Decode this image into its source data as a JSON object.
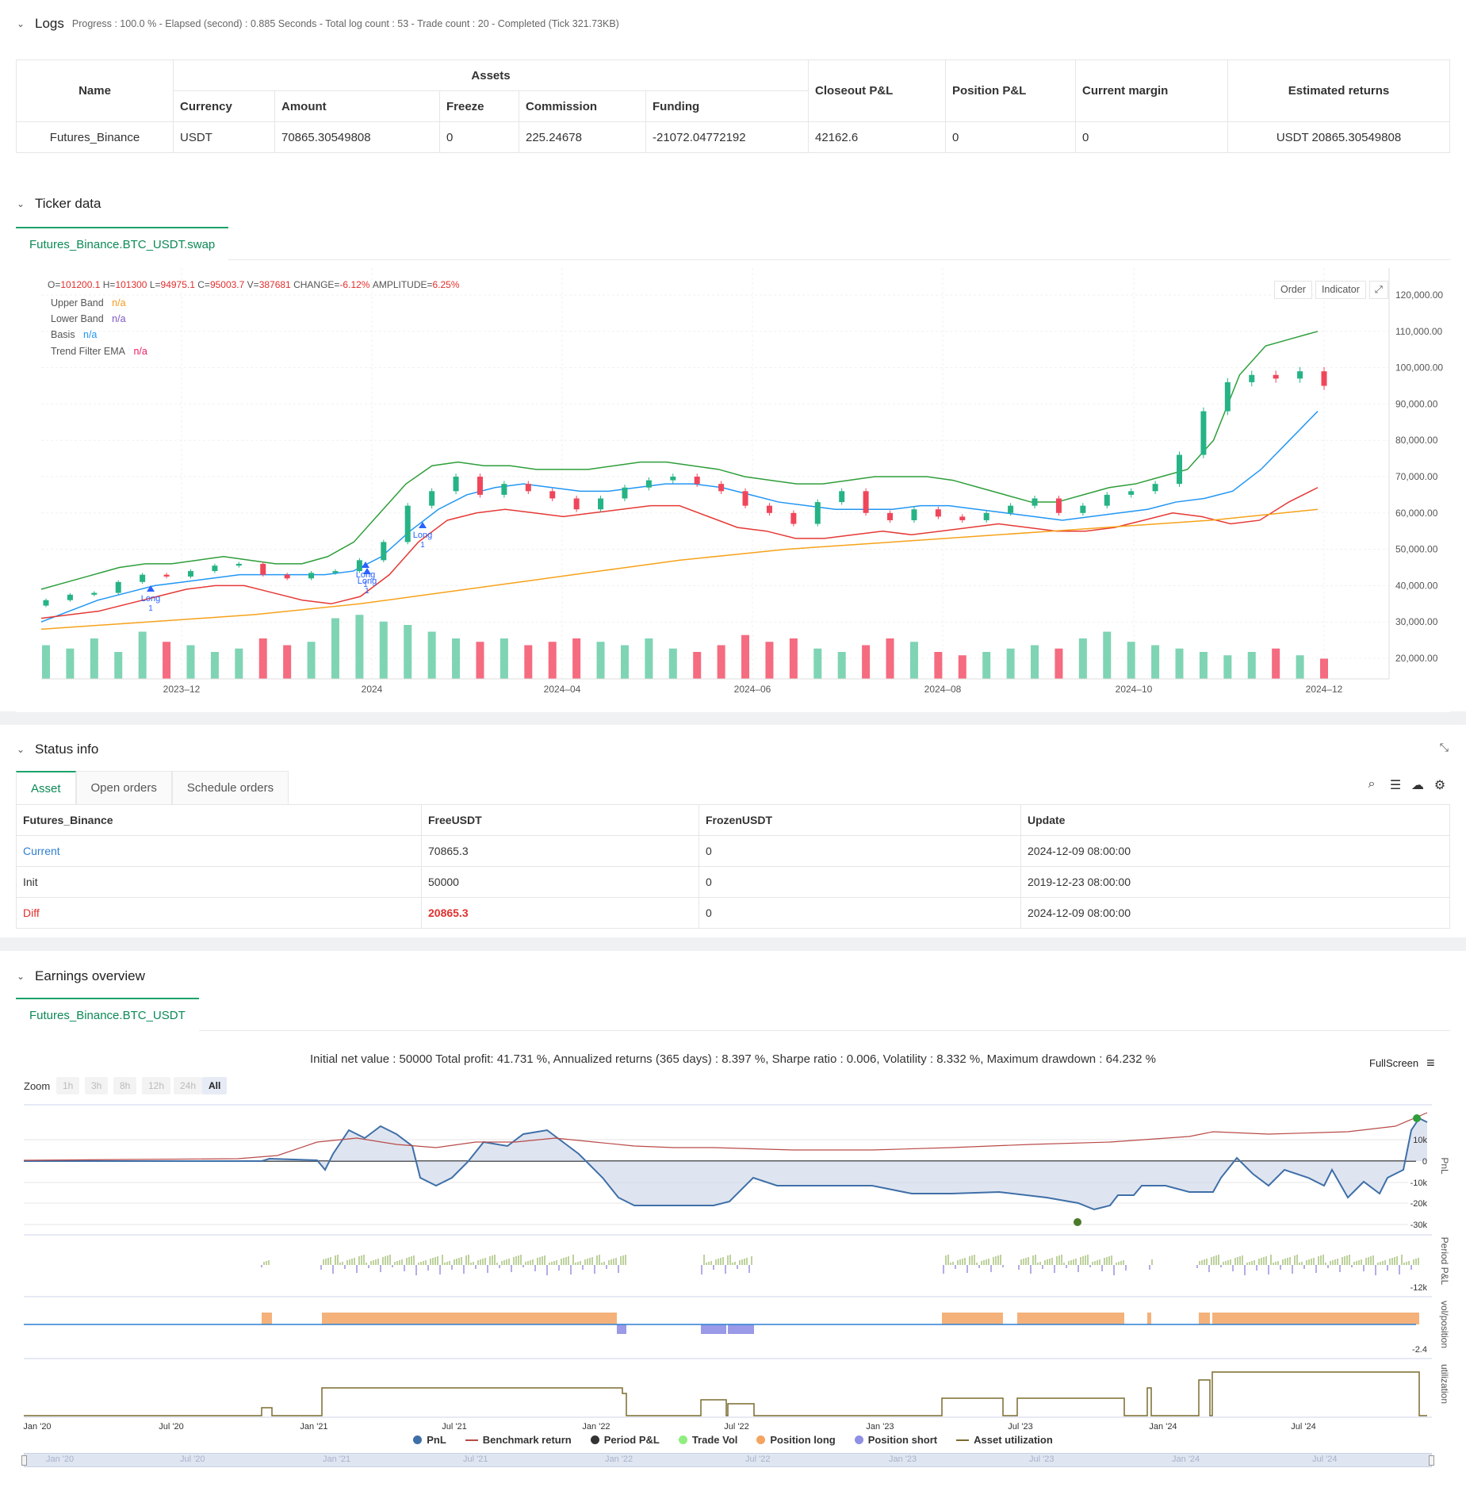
{
  "logs": {
    "title": "Logs",
    "summary": "Progress : 100.0 % - Elapsed (second) : 0.885  Seconds - Total log count : 53 - Trade count : 20 - Completed (Tick 321.73KB)",
    "headers": {
      "name": "Name",
      "assets": "Assets",
      "currency": "Currency",
      "amount": "Amount",
      "freeze": "Freeze",
      "commission": "Commission",
      "funding": "Funding",
      "closeout": "Closeout P&L",
      "position": "Position P&L",
      "margin": "Current margin",
      "returns": "Estimated returns"
    },
    "row": {
      "name": "Futures_Binance",
      "currency": "USDT",
      "amount": "70865.30549808",
      "freeze": "0",
      "commission": "225.24678",
      "funding": "-21072.04772192",
      "closeout": "42162.6",
      "position": "0",
      "margin": "0",
      "returns": "USDT 20865.30549808"
    }
  },
  "ticker": {
    "title": "Ticker data",
    "tab": "Futures_Binance.BTC_USDT.swap",
    "ohlc": {
      "o_label": "O=",
      "o": "101200.1",
      "h_label": "H=",
      "h": "101300",
      "l_label": "L=",
      "l": "94975.1",
      "c_label": "C=",
      "c": "95003.7",
      "v_label": "V=",
      "v": "387681",
      "chg_label": "CHANGE=",
      "chg": "-6.12%",
      "amp_label": "AMPLITUDE=",
      "amp": "6.25%"
    },
    "legend": [
      {
        "name": "Upper Band",
        "value": "n/a",
        "color": "#f29b1d"
      },
      {
        "name": "Lower Band",
        "value": "n/a",
        "color": "#7e57c2"
      },
      {
        "name": "Basis",
        "value": "n/a",
        "color": "#2196f3"
      },
      {
        "name": "Trend Filter EMA",
        "value": "n/a",
        "color": "#e91e63"
      }
    ],
    "buttons": {
      "order": "Order",
      "indicator": "Indicator"
    },
    "y_ticks": [
      "120,000.00",
      "110,000.00",
      "100,000.00",
      "90,000.00",
      "80,000.00",
      "70,000.00",
      "60,000.00",
      "50,000.00",
      "40,000.00",
      "30,000.00",
      "20,000.00"
    ],
    "x_ticks": [
      "2023–12",
      "2024",
      "2024–04",
      "2024–06",
      "2024–08",
      "2024–10",
      "2024–12"
    ],
    "signal_label": "Long",
    "signal_qty": "1"
  },
  "status": {
    "title": "Status info",
    "tabs": [
      "Asset",
      "Open orders",
      "Schedule orders"
    ],
    "headers": [
      "Futures_Binance",
      "FreeUSDT",
      "FrozenUSDT",
      "Update"
    ],
    "rows": [
      {
        "label": "Current",
        "free": "70865.3",
        "frozen": "0",
        "update": "2024-12-09 08:00:00",
        "color": "#2f7fd1"
      },
      {
        "label": "Init",
        "free": "50000",
        "frozen": "0",
        "update": "2019-12-23 08:00:00",
        "color": "#333333"
      },
      {
        "label": "Diff",
        "free": "20865.3",
        "frozen": "0",
        "update": "2024-12-09 08:00:00",
        "color": "#e0302d"
      }
    ]
  },
  "earnings": {
    "title": "Earnings overview",
    "tab": "Futures_Binance.BTC_USDT",
    "summary": "Initial net value : 50000  Total profit: 41.731 %, Annualized returns (365 days) : 8.397 %, Sharpe ratio : 0.006, Volatility : 8.332 %, Maximum drawdown : 64.232 %",
    "fullscreen": "FullScreen",
    "zoom_label": "Zoom",
    "zoom_options": [
      "1h",
      "3h",
      "8h",
      "12h",
      "24h",
      "All"
    ],
    "pnl_ticks": [
      "10k",
      "0",
      "-10k",
      "-20k",
      "-30k"
    ],
    "pnl_axis": "PnL",
    "period_axis": "Period P&L",
    "period_tick": "-12k",
    "vol_axis": "vol/position",
    "vol_tick": "-2.4",
    "util_axis": "utilization",
    "x_ticks": [
      "Jan '20",
      "Jul '20",
      "Jan '21",
      "Jul '21",
      "Jan '22",
      "Jul '22",
      "Jan '23",
      "Jul '23",
      "Jan '24",
      "Jul '24"
    ],
    "legend": [
      {
        "name": "PnL",
        "color": "#3f6fa8",
        "kind": "dot"
      },
      {
        "name": "Benchmark return",
        "color": "#b94a48",
        "kind": "line"
      },
      {
        "name": "Period P&L",
        "color": "#333333",
        "kind": "dot"
      },
      {
        "name": "Trade Vol",
        "color": "#90ee7e",
        "kind": "dot"
      },
      {
        "name": "Position long",
        "color": "#f4a460",
        "kind": "dot"
      },
      {
        "name": "Position short",
        "color": "#8f8fe6",
        "kind": "dot"
      },
      {
        "name": "Asset utilization",
        "color": "#7a6b2f",
        "kind": "line"
      }
    ]
  },
  "chart_data": {
    "type": "candlestick",
    "title": "Futures_Binance.BTC_USDT.swap",
    "ylim": [
      15000,
      125000
    ],
    "series": [
      {
        "name": "Close (approx.)",
        "values": [
          36000,
          37500,
          38000,
          41000,
          43000,
          42500,
          44000,
          45500,
          46000,
          43000,
          42000,
          43500,
          44000,
          47000,
          52000,
          62000,
          66000,
          70000,
          65000,
          68000,
          66000,
          64000,
          61000,
          64000,
          67000,
          69000,
          70000,
          68000,
          66000,
          62000,
          60000,
          57000,
          63000,
          66000,
          60000,
          58000,
          61000,
          59000,
          58000,
          60000,
          62000,
          64000,
          60000,
          62000,
          65000,
          66000,
          68000,
          76000,
          88000,
          96000,
          98000,
          97000,
          99000,
          95000
        ]
      },
      {
        "name": "Upper Band (approx.)",
        "values": [
          39000,
          41000,
          43000,
          45000,
          46000,
          46000,
          47000,
          48000,
          47000,
          46000,
          46000,
          48000,
          52000,
          60000,
          68000,
          73000,
          74000,
          73000,
          73000,
          72000,
          72000,
          72000,
          73000,
          74000,
          74000,
          73000,
          72000,
          70000,
          69000,
          68000,
          68000,
          69000,
          70000,
          70000,
          70000,
          69000,
          67000,
          65000,
          63000,
          63000,
          65000,
          67000,
          68000,
          70000,
          72000,
          80000,
          98000,
          106000,
          108000,
          110000
        ]
      },
      {
        "name": "Basis (approx.)",
        "values": [
          30000,
          33000,
          36000,
          38000,
          40000,
          41000,
          42000,
          43000,
          43000,
          43000,
          43000,
          44000,
          48000,
          55000,
          61000,
          65000,
          67000,
          68000,
          67000,
          66000,
          66000,
          67000,
          68000,
          68000,
          67000,
          65000,
          63000,
          62000,
          61000,
          61000,
          61000,
          62000,
          62000,
          61000,
          60000,
          59000,
          58000,
          59000,
          60000,
          61000,
          63000,
          64000,
          66000,
          72000,
          80000,
          88000
        ]
      },
      {
        "name": "Lower Band (approx.)",
        "values": [
          31000,
          32000,
          33000,
          35000,
          37000,
          39000,
          40000,
          40000,
          38000,
          36000,
          35000,
          37000,
          43000,
          52000,
          58000,
          60000,
          61000,
          60000,
          59000,
          60000,
          61000,
          62000,
          62000,
          59000,
          56000,
          55000,
          53000,
          53000,
          54000,
          55000,
          54000,
          55000,
          56000,
          57000,
          56000,
          55000,
          55000,
          56000,
          58000,
          60000,
          59000,
          57000,
          58000,
          63000,
          67000
        ]
      },
      {
        "name": "Trend Filter EMA (approx.)",
        "values": [
          28000,
          29000,
          30000,
          31000,
          32000,
          33500,
          35000,
          37000,
          39000,
          41000,
          43000,
          45000,
          47000,
          48500,
          50000,
          51000,
          52000,
          53000,
          54000,
          55000,
          56000,
          57000,
          58000,
          59500,
          61000
        ]
      }
    ]
  }
}
